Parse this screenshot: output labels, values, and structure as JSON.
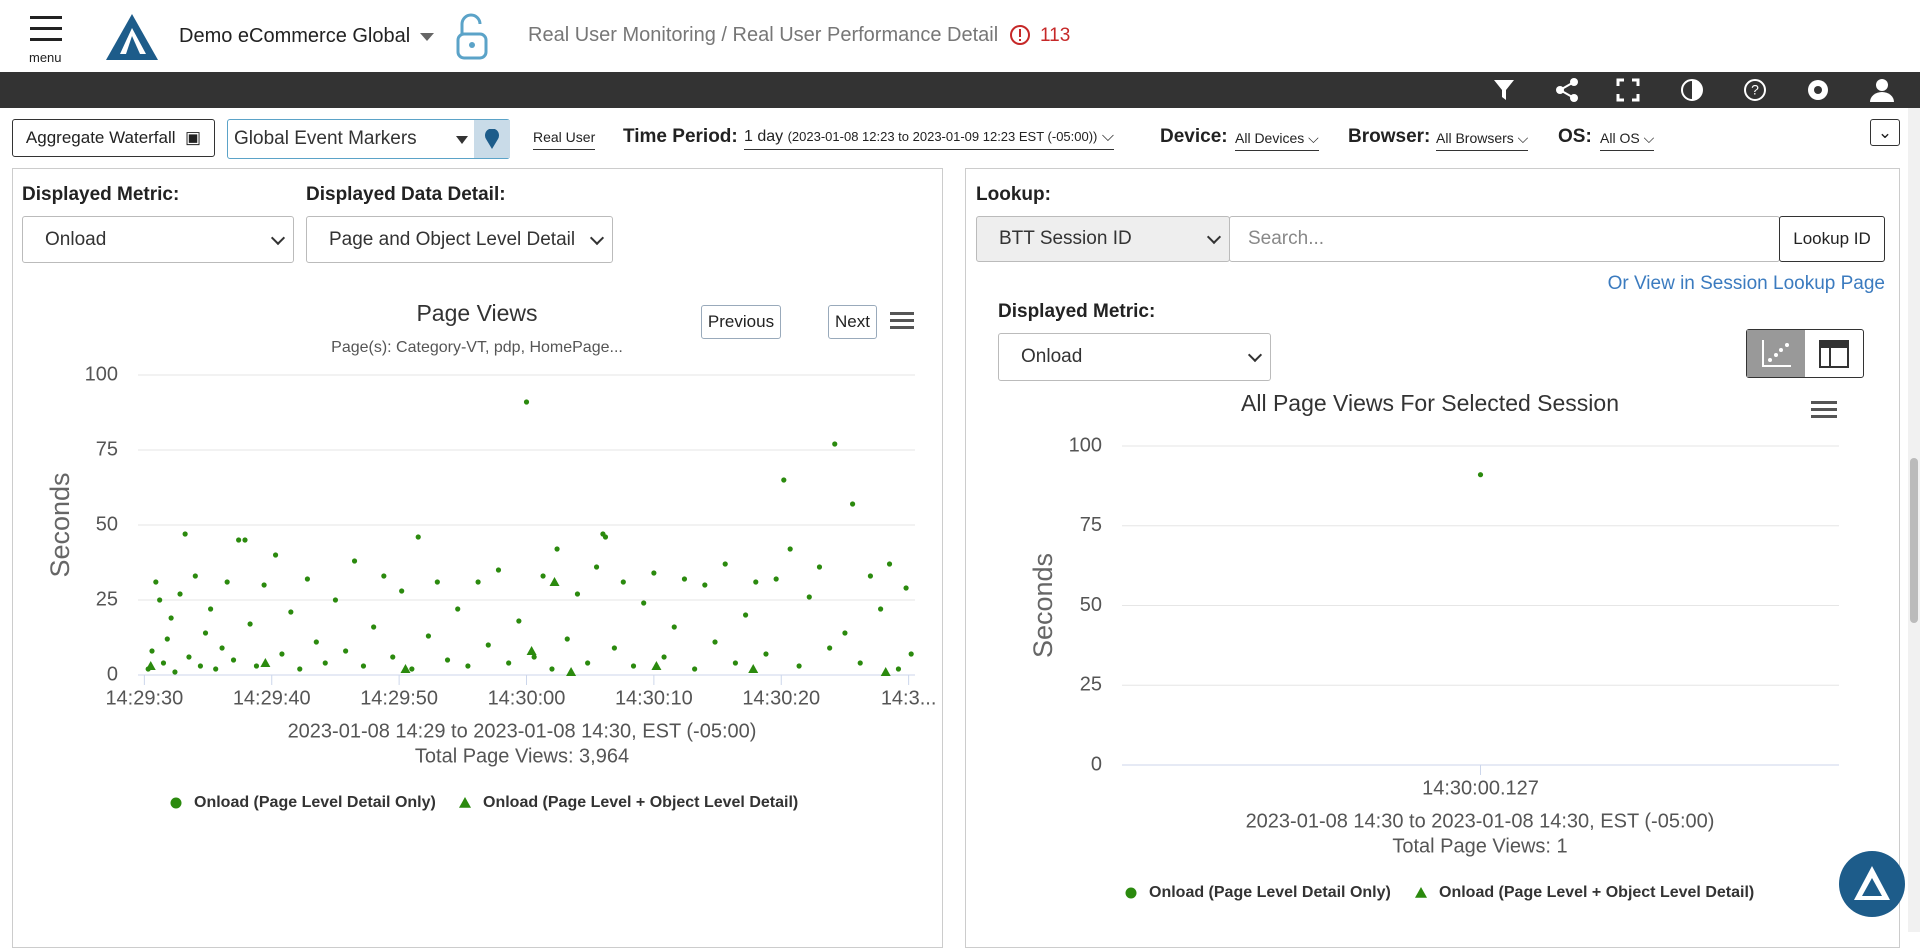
{
  "header": {
    "menu": "menu",
    "account": "Demo eCommerce Global",
    "breadcrumb": "Real User Monitoring / Real User Performance Detail",
    "alerts": "113"
  },
  "toolbar": {
    "waterfall": "Aggregate Waterfall",
    "markers": "Global Event Markers",
    "source": "Real User",
    "period_label": "Time Period:",
    "period": "1 day",
    "period_range": "(2023-01-08 12:23 to 2023-01-09 12:23 EST (-05:00))",
    "device_label": "Device:",
    "device": "All Devices",
    "browser_label": "Browser:",
    "browser": "All Browsers",
    "os_label": "OS:",
    "os": "All OS"
  },
  "left_panel": {
    "metric_label": "Displayed Metric:",
    "metric": "Onload",
    "detail_label": "Displayed Data Detail:",
    "detail": "Page and Object Level Detail",
    "previous": "Previous",
    "next": "Next"
  },
  "right_panel": {
    "lookup_label": "Lookup:",
    "lookup_type": "BTT Session ID",
    "search_placeholder": "Search...",
    "lookup_button": "Lookup ID",
    "session_link": "Or View in Session Lookup Page",
    "metric_label": "Displayed Metric:",
    "metric": "Onload"
  },
  "chart_data": [
    {
      "type": "scatter",
      "title": "Page Views",
      "subtitle": "Page(s): Category-VT, pdp, HomePage...",
      "y_label": "Seconds",
      "annotations": [
        "2023-01-08 14:29 to 2023-01-08 14:30, EST (-05:00)",
        "Total Page Views: 3,964"
      ],
      "xlim": [
        -0.5,
        60.5
      ],
      "xticks": [
        {
          "value": 0,
          "label": "14:29:30"
        },
        {
          "value": 10,
          "label": "14:29:40"
        },
        {
          "value": 20,
          "label": "14:29:50"
        },
        {
          "value": 30,
          "label": "14:30:00"
        },
        {
          "value": 40,
          "label": "14:30:10"
        },
        {
          "value": 50,
          "label": "14:30:20"
        },
        {
          "value": 60,
          "label": "14:3..."
        }
      ],
      "ylim": [
        0,
        100
      ],
      "yticks": [
        0,
        25,
        50,
        75,
        100
      ],
      "grid": true,
      "series": [
        {
          "name": "Onload (Page Level Detail Only)",
          "color": "#2b8a0e",
          "marker": "circle",
          "x": [
            0.3,
            0.6,
            0.9,
            1.2,
            1.5,
            1.8,
            2.1,
            2.4,
            2.8,
            3.2,
            3.5,
            4,
            4.4,
            4.8,
            5.2,
            5.6,
            6.1,
            6.5,
            7,
            7.4,
            7.9,
            8.3,
            8.8,
            9.4,
            10.3,
            10.8,
            11.5,
            12.2,
            12.8,
            13.5,
            14.2,
            15,
            15.8,
            16.5,
            17.2,
            18,
            18.8,
            19.5,
            20.2,
            21,
            21.5,
            22.3,
            23,
            23.8,
            24.6,
            25.4,
            26.2,
            27,
            27.8,
            28.6,
            29.4,
            30,
            30.6,
            31.3,
            32,
            32.4,
            33.2,
            34,
            34.8,
            35.5,
            36,
            36.2,
            36.9,
            37.6,
            38.4,
            39.2,
            40,
            40.8,
            41.6,
            42.4,
            43.2,
            44,
            44.8,
            45.6,
            46.4,
            47.2,
            48,
            48.8,
            49.6,
            50.2,
            50.7,
            51.4,
            52.2,
            53,
            53.8,
            54.2,
            55,
            55.6,
            56.2,
            57,
            57.8,
            58.5,
            59.2,
            59.8,
            60.2
          ],
          "values": [
            2,
            8,
            31,
            25,
            4,
            12,
            19,
            1,
            27,
            47,
            6,
            33,
            3,
            14,
            22,
            2,
            9,
            31,
            5,
            45,
            45,
            17,
            3,
            30,
            40,
            7,
            21,
            2,
            32,
            11,
            4,
            25,
            8,
            38,
            3,
            16,
            33,
            6,
            28,
            2,
            46,
            13,
            31,
            5,
            22,
            3,
            31,
            10,
            35,
            4,
            18,
            91,
            6,
            33,
            2,
            42,
            12,
            27,
            4,
            36,
            47,
            46,
            9,
            31,
            3,
            24,
            34,
            6,
            16,
            32,
            2,
            30,
            11,
            37,
            4,
            20,
            31,
            7,
            32,
            65,
            42,
            3,
            26,
            36,
            9,
            77,
            14,
            57,
            4,
            33,
            22,
            37,
            2,
            29,
            7
          ]
        },
        {
          "name": "Onload (Page Level + Object Level Detail)",
          "color": "#2b8a0e",
          "marker": "triangle",
          "x": [
            0.5,
            9.5,
            20.5,
            30.4,
            32.2,
            33.5,
            40.2,
            47.8,
            58.2
          ],
          "values": [
            3,
            4,
            2,
            8,
            31,
            1,
            3,
            2,
            1
          ]
        }
      ]
    },
    {
      "type": "scatter",
      "title": "All Page Views For Selected Session",
      "y_label": "Seconds",
      "annotations": [
        "2023-01-08 14:30 to 2023-01-08 14:30, EST (-05:00)",
        "Total Page Views: 1"
      ],
      "xlim": [
        -1,
        1
      ],
      "xticks": [
        {
          "value": 0,
          "label": "14:30:00.127"
        }
      ],
      "ylim": [
        0,
        100
      ],
      "yticks": [
        0,
        25,
        50,
        75,
        100
      ],
      "grid": true,
      "series": [
        {
          "name": "Onload (Page Level Detail Only)",
          "color": "#2b8a0e",
          "marker": "circle",
          "x": [
            0
          ],
          "values": [
            91
          ]
        },
        {
          "name": "Onload (Page Level + Object Level Detail)",
          "color": "#2b8a0e",
          "marker": "triangle",
          "x": [],
          "values": []
        }
      ]
    }
  ]
}
